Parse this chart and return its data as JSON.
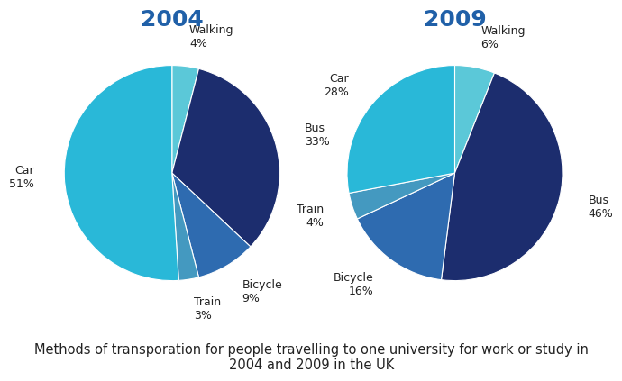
{
  "title_2004": "2004",
  "title_2009": "2009",
  "title_color": "#2060A8",
  "caption": "Methods of transporation for people travelling to one university for work or study in\n2004 and 2009 in the UK",
  "caption_fontsize": 10.5,
  "title_fontsize": 18,
  "label_fontsize": 9,
  "data_2004": {
    "labels": [
      "Walking",
      "Bus",
      "Bicycle",
      "Train",
      "Car"
    ],
    "values": [
      4,
      33,
      9,
      3,
      51
    ],
    "colors": [
      "#5BC8D8",
      "#1C2D6E",
      "#2E6BB0",
      "#4499C0",
      "#29B8D8"
    ]
  },
  "data_2009": {
    "labels": [
      "Walking",
      "Bus",
      "Bicycle",
      "Train",
      "Car"
    ],
    "values": [
      6,
      46,
      16,
      4,
      28
    ],
    "colors": [
      "#5BC8D8",
      "#1C2D6E",
      "#2E6BB0",
      "#4499C0",
      "#29B8D8"
    ]
  },
  "background_color": "#FFFFFF"
}
